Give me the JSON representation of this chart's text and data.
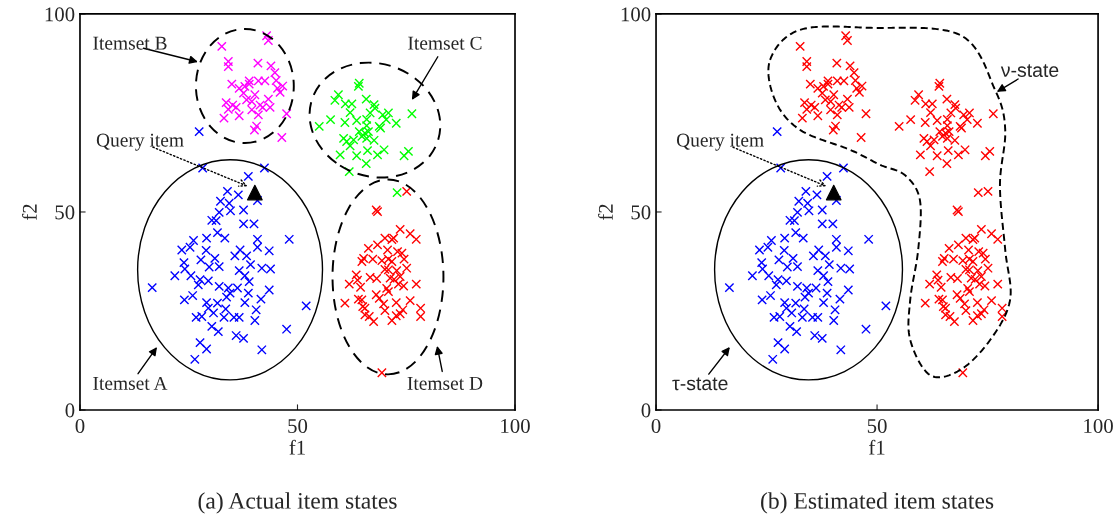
{
  "chart_data": [
    {
      "type": "scatter",
      "title": "(a) Actual item states",
      "xlabel": "f1",
      "ylabel": "f2",
      "xlim": [
        0,
        100
      ],
      "ylim": [
        0,
        100
      ],
      "xticks": [
        0,
        50,
        100
      ],
      "yticks": [
        0,
        50,
        100
      ],
      "annotations": [
        "Itemset A",
        "Itemset B",
        "Itemset C",
        "Itemset D",
        "Query item"
      ],
      "series": [
        {
          "color": "#0000ff",
          "marker": "cross",
          "x": [
            28.2,
            42.4,
            38.7,
            33.9,
            36.4,
            40.8,
            32.3,
            34.3,
            37.6,
            34.6,
            32.0,
            30.3,
            31.3,
            37.6,
            40.0,
            31.6,
            29.1,
            33.3,
            26.1,
            40.8,
            48.1,
            25.3,
            23.4,
            29.0,
            40.8,
            43.5,
            36.8,
            35.6,
            38.3,
            31.0,
            27.8,
            23.9,
            29.7,
            32.0,
            39.2,
            41.8,
            43.8,
            24.1,
            36.6,
            21.8,
            25.5,
            37.9,
            27.6,
            29.5,
            38.9,
            27.2,
            32.0,
            34.1,
            36.2,
            16.6,
            43.5,
            34.5,
            38.7,
            25.9,
            24.0,
            33.7,
            41.6,
            29.1,
            31.6,
            37.9,
            29.5,
            33.5,
            40.5,
            52.0,
            30.7,
            26.7,
            28.0,
            33.1,
            35.4,
            36.6,
            40.2,
            30.3,
            47.5,
            31.8,
            35.9,
            37.6,
            27.6,
            29.1,
            41.8,
            26.4,
            27.4
          ],
          "values": [
            61.1,
            61.1,
            59.0,
            55.2,
            54.3,
            52.9,
            52.7,
            52.2,
            50.5,
            50.3,
            49.9,
            47.9,
            47.8,
            47.0,
            47.0,
            44.8,
            43.4,
            43.4,
            42.8,
            43.1,
            43.1,
            41.1,
            40.4,
            40.3,
            41.1,
            40.2,
            40.4,
            38.9,
            38.9,
            38.3,
            37.9,
            37.2,
            36.1,
            36.2,
            36.7,
            35.8,
            35.6,
            35.6,
            35.2,
            33.9,
            33.9,
            33.9,
            32.9,
            32.6,
            32.4,
            31.6,
            31.2,
            30.8,
            30.8,
            30.9,
            30.3,
            29.5,
            29.5,
            28.9,
            27.8,
            28.5,
            28.0,
            27.1,
            27.0,
            27.1,
            25.7,
            25.5,
            25.3,
            26.3,
            24.5,
            23.4,
            23.6,
            23.4,
            23.4,
            23.4,
            22.6,
            21.1,
            20.4,
            19.8,
            18.8,
            18.1,
            17.0,
            15.4,
            15.2,
            12.8,
            70.3
          ]
        },
        {
          "color": "#ff00ff",
          "marker": "cross",
          "x": [
            42.9,
            43.3,
            32.6,
            34.1,
            34.1,
            40.9,
            43.9,
            44.8,
            45.1,
            34.9,
            38.9,
            41.0,
            42.5,
            36.6,
            37.9,
            38.9,
            45.4,
            46.6,
            46.0,
            33.6,
            35.1,
            37.6,
            38.3,
            40.2,
            39.5,
            41.4,
            43.3,
            43.7,
            35.9,
            34.1,
            39.5,
            42.0,
            33.1,
            36.6,
            41.0,
            47.5,
            40.6,
            40.1,
            46.4
          ],
          "values": [
            94.5,
            93.3,
            91.8,
            88.0,
            86.7,
            87.6,
            86.9,
            85.2,
            83.2,
            82.3,
            83.1,
            83.1,
            83.1,
            81.2,
            81.7,
            82.3,
            81.2,
            81.8,
            80.2,
            77.6,
            77.0,
            80.0,
            78.3,
            79.6,
            77.9,
            77.0,
            78.5,
            76.4,
            76.4,
            75.9,
            75.8,
            76.4,
            73.7,
            74.3,
            74.5,
            74.8,
            71.7,
            70.7,
            68.8
          ]
        },
        {
          "color": "#00ff00",
          "marker": "cross",
          "x": [
            64.2,
            64.0,
            59.4,
            58.6,
            61.0,
            62.5,
            65.8,
            67.6,
            67.8,
            62.1,
            66.7,
            69.6,
            70.9,
            76.3,
            57.6,
            60.9,
            63.6,
            65.9,
            70.4,
            72.7,
            55.0,
            65.9,
            68.8,
            69.1,
            64.2,
            65.5,
            66.3,
            60.6,
            61.3,
            62.9,
            64.8,
            65.9,
            67.6,
            62.1,
            59.8,
            63.6,
            66.1,
            68.4,
            69.9,
            74.5,
            75.5,
            65.8,
            61.9,
            72.9
          ],
          "values": [
            82.5,
            81.7,
            79.6,
            78.2,
            77.3,
            77.3,
            78.5,
            77.1,
            76.2,
            75.1,
            75.0,
            74.5,
            75.0,
            74.8,
            73.3,
            72.6,
            73.1,
            73.4,
            73.3,
            72.4,
            71.6,
            71.8,
            71.6,
            71.2,
            70.3,
            69.9,
            70.3,
            68.6,
            67.8,
            68.2,
            69.1,
            68.6,
            68.1,
            66.7,
            64.4,
            64.2,
            65.5,
            64.4,
            65.7,
            64.2,
            65.3,
            62.2,
            60.2,
            54.9
          ]
        },
        {
          "color": "#ff0000",
          "marker": "cross",
          "x": [
            75.1,
            68.1,
            68.4,
            73.6,
            75.9,
            77.3,
            70.1,
            71.7,
            72.1,
            68.4,
            66.3,
            70.7,
            73.0,
            74.0,
            65.2,
            67.3,
            69.4,
            70.9,
            71.7,
            74.5,
            64.8,
            75.1,
            70.1,
            70.9,
            72.8,
            63.5,
            66.7,
            68.2,
            71.3,
            72.2,
            73.6,
            61.9,
            63.8,
            64.5,
            73.2,
            74.4,
            77.3,
            70.5,
            70.9,
            68.1,
            68.8,
            64.0,
            64.8,
            75.9,
            60.9,
            72.7,
            69.8,
            65.0,
            65.5,
            70.1,
            74.2,
            78.3,
            65.5,
            66.5,
            73.6,
            72.7,
            78.3,
            67.5,
            71.7,
            69.4
          ],
          "values": [
            55.2,
            50.5,
            50.1,
            45.6,
            44.5,
            43.1,
            43.4,
            43.0,
            43.4,
            41.7,
            40.8,
            40.4,
            40.0,
            39.6,
            38.3,
            38.1,
            37.7,
            38.1,
            37.5,
            38.1,
            37.5,
            35.8,
            35.5,
            35.4,
            35.2,
            34.1,
            33.5,
            33.2,
            33.3,
            33.0,
            33.7,
            31.8,
            32.8,
            31.0,
            31.8,
            31.3,
            31.8,
            30.7,
            29.9,
            29.1,
            28.2,
            28.0,
            27.8,
            27.6,
            27.0,
            27.1,
            26.8,
            26.1,
            25.7,
            25.1,
            25.3,
            25.7,
            24.0,
            23.6,
            24.3,
            23.8,
            23.6,
            22.3,
            22.6,
            9.4
          ]
        },
        {
          "color": "#000000",
          "marker": "triangle",
          "x": [
            40.2
          ],
          "values": [
            54.9
          ]
        }
      ]
    },
    {
      "type": "scatter",
      "title": "(b) Estimated item states",
      "xlabel": "f1",
      "ylabel": "f2",
      "xlim": [
        0,
        100
      ],
      "ylim": [
        0,
        100
      ],
      "xticks": [
        0,
        50,
        100
      ],
      "yticks": [
        0,
        50,
        100
      ],
      "annotations": [
        "τ-state",
        "ν-state",
        "Query item"
      ],
      "series": [
        {
          "color": "#0000ff",
          "marker": "cross",
          "x": [
            28.2,
            42.4,
            38.7,
            33.9,
            36.4,
            40.8,
            32.3,
            34.3,
            37.6,
            34.6,
            32.0,
            30.3,
            31.3,
            37.6,
            40.0,
            31.6,
            29.1,
            33.3,
            26.1,
            40.8,
            48.1,
            25.3,
            23.4,
            29.0,
            40.8,
            43.5,
            36.8,
            35.6,
            38.3,
            31.0,
            27.8,
            23.9,
            29.7,
            32.0,
            39.2,
            41.8,
            43.8,
            24.1,
            36.6,
            21.8,
            25.5,
            37.9,
            27.6,
            29.5,
            38.9,
            27.2,
            32.0,
            34.1,
            36.2,
            16.6,
            43.5,
            34.5,
            38.7,
            25.9,
            24.0,
            33.7,
            41.6,
            29.1,
            31.6,
            37.9,
            29.5,
            33.5,
            40.5,
            52.0,
            30.7,
            26.7,
            28.0,
            33.1,
            35.4,
            36.6,
            40.2,
            30.3,
            47.5,
            31.8,
            35.9,
            37.6,
            27.6,
            29.1,
            41.8,
            26.4,
            27.4
          ],
          "values": [
            61.1,
            61.1,
            59.0,
            55.2,
            54.3,
            52.9,
            52.7,
            52.2,
            50.5,
            50.3,
            49.9,
            47.9,
            47.8,
            47.0,
            47.0,
            44.8,
            43.4,
            43.4,
            42.8,
            43.1,
            43.1,
            41.1,
            40.4,
            40.3,
            41.1,
            40.2,
            40.4,
            38.9,
            38.9,
            38.3,
            37.9,
            37.2,
            36.1,
            36.2,
            36.7,
            35.8,
            35.6,
            35.6,
            35.2,
            33.9,
            33.9,
            33.9,
            32.9,
            32.6,
            32.4,
            31.6,
            31.2,
            30.8,
            30.8,
            30.9,
            30.3,
            29.5,
            29.5,
            28.9,
            27.8,
            28.5,
            28.0,
            27.1,
            27.0,
            27.1,
            25.7,
            25.5,
            25.3,
            26.3,
            24.5,
            23.4,
            23.6,
            23.4,
            23.4,
            23.4,
            22.6,
            21.1,
            20.4,
            19.8,
            18.8,
            18.1,
            17.0,
            15.4,
            15.2,
            12.8,
            70.3
          ]
        },
        {
          "color": "#ff0000",
          "marker": "cross",
          "x": [
            42.9,
            43.3,
            32.6,
            34.1,
            34.1,
            40.9,
            43.9,
            44.8,
            45.1,
            34.9,
            38.9,
            41.0,
            42.5,
            36.6,
            37.9,
            38.9,
            45.4,
            46.6,
            46.0,
            33.6,
            35.1,
            37.6,
            38.3,
            40.2,
            39.5,
            41.4,
            43.3,
            43.7,
            35.9,
            34.1,
            39.5,
            42.0,
            33.1,
            36.6,
            41.0,
            47.5,
            40.6,
            40.1,
            46.4,
            64.2,
            64.0,
            59.4,
            58.6,
            61.0,
            62.5,
            65.8,
            67.6,
            67.8,
            62.1,
            66.7,
            69.6,
            70.9,
            76.3,
            57.6,
            60.9,
            63.6,
            65.9,
            70.4,
            72.7,
            55.0,
            65.9,
            68.8,
            69.1,
            64.2,
            65.5,
            66.3,
            60.6,
            61.3,
            62.9,
            64.8,
            65.9,
            67.6,
            62.1,
            59.8,
            63.6,
            66.1,
            68.4,
            69.9,
            74.5,
            75.5,
            65.8,
            61.9,
            72.9,
            75.1,
            68.1,
            68.4,
            73.6,
            75.9,
            77.3,
            70.1,
            71.7,
            72.1,
            68.4,
            66.3,
            70.7,
            73.0,
            74.0,
            65.2,
            67.3,
            69.4,
            70.9,
            71.7,
            74.5,
            64.8,
            75.1,
            70.1,
            70.9,
            72.8,
            63.5,
            66.7,
            68.2,
            71.3,
            72.2,
            73.6,
            61.9,
            63.8,
            64.5,
            73.2,
            74.4,
            77.3,
            70.5,
            70.9,
            68.1,
            68.8,
            64.0,
            64.8,
            75.9,
            60.9,
            72.7,
            69.8,
            65.0,
            65.5,
            70.1,
            74.2,
            78.3,
            65.5,
            66.5,
            73.6,
            72.7,
            78.3,
            67.5,
            71.7,
            69.4
          ],
          "values": [
            94.5,
            93.3,
            91.8,
            88.0,
            86.7,
            87.6,
            86.9,
            85.2,
            83.2,
            82.3,
            83.1,
            83.1,
            83.1,
            81.2,
            81.7,
            82.3,
            81.2,
            81.8,
            80.2,
            77.6,
            77.0,
            80.0,
            78.3,
            79.6,
            77.9,
            77.0,
            78.5,
            76.4,
            76.4,
            75.9,
            75.8,
            76.4,
            73.7,
            74.3,
            74.5,
            74.8,
            71.7,
            70.7,
            68.8,
            82.5,
            81.7,
            79.6,
            78.2,
            77.3,
            77.3,
            78.5,
            77.1,
            76.2,
            75.1,
            75.0,
            74.5,
            75.0,
            74.8,
            73.3,
            72.6,
            73.1,
            73.4,
            73.3,
            72.4,
            71.6,
            71.8,
            71.6,
            71.2,
            70.3,
            69.9,
            70.3,
            68.6,
            67.8,
            68.2,
            69.1,
            68.6,
            68.1,
            66.7,
            64.4,
            64.2,
            65.5,
            64.4,
            65.7,
            64.2,
            65.3,
            62.2,
            60.2,
            54.9,
            55.2,
            50.5,
            50.1,
            45.6,
            44.5,
            43.1,
            43.4,
            43.0,
            43.4,
            41.7,
            40.8,
            40.4,
            40.0,
            39.6,
            38.3,
            38.1,
            37.7,
            38.1,
            37.5,
            38.1,
            37.5,
            35.8,
            35.5,
            35.4,
            35.2,
            34.1,
            33.5,
            33.2,
            33.3,
            33.0,
            33.7,
            31.8,
            32.8,
            31.0,
            31.8,
            31.3,
            31.8,
            30.7,
            29.9,
            29.1,
            28.2,
            28.0,
            27.8,
            27.6,
            27.0,
            27.1,
            26.8,
            26.1,
            25.7,
            25.1,
            25.3,
            25.7,
            24.0,
            23.6,
            24.3,
            23.8,
            23.6,
            22.3,
            22.6,
            9.4
          ]
        },
        {
          "color": "#000000",
          "marker": "triangle",
          "x": [
            40.2
          ],
          "values": [
            54.9
          ]
        }
      ]
    }
  ]
}
